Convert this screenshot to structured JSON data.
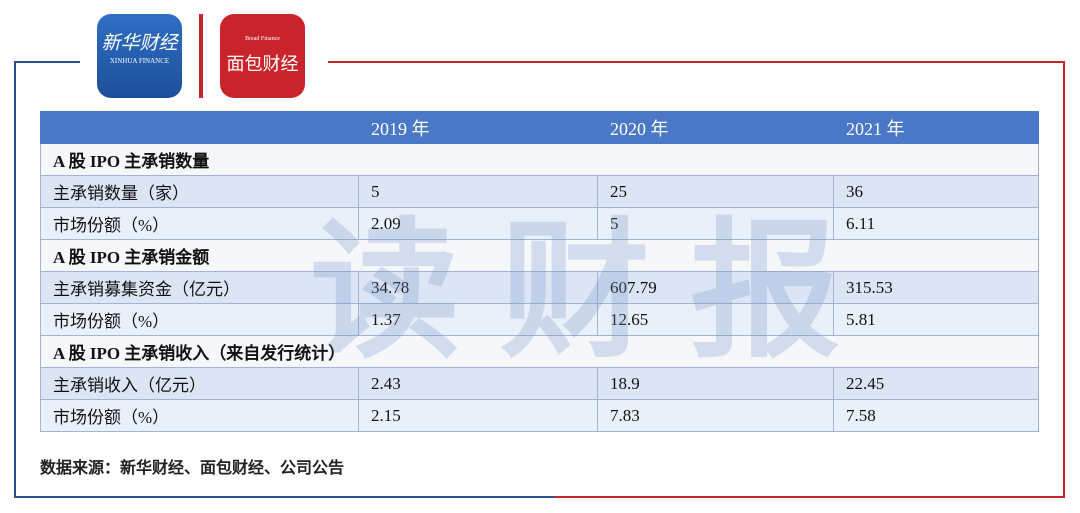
{
  "logos": {
    "xinhua": "新华财经",
    "xinhua_en": "XINHUA FINANCE",
    "bread": "面包财经",
    "bread_en": "Bread Finance"
  },
  "watermark": "读财报",
  "table": {
    "columns": [
      "2019 年",
      "2020 年",
      "2021 年"
    ],
    "sections": [
      {
        "title": "A 股 IPO 主承销数量",
        "rows": [
          [
            "主承销数量（家）",
            "5",
            "25",
            "36"
          ],
          [
            "市场份额（%）",
            "2.09",
            "5",
            "6.11"
          ]
        ]
      },
      {
        "title": "A 股 IPO 主承销金额",
        "rows": [
          [
            "主承销募集资金（亿元）",
            "34.78",
            "607.79",
            "315.53"
          ],
          [
            "市场份额（%）",
            "1.37",
            "12.65",
            "5.81"
          ]
        ]
      },
      {
        "title": "A 股 IPO 主承销收入（来自发行统计）",
        "rows": [
          [
            "主承销收入（亿元）",
            "2.43",
            "18.9",
            "22.45"
          ],
          [
            "市场份额（%）",
            "2.15",
            "7.83",
            "7.58"
          ]
        ]
      }
    ]
  },
  "source": "数据来源：新华财经、面包财经、公司公告"
}
